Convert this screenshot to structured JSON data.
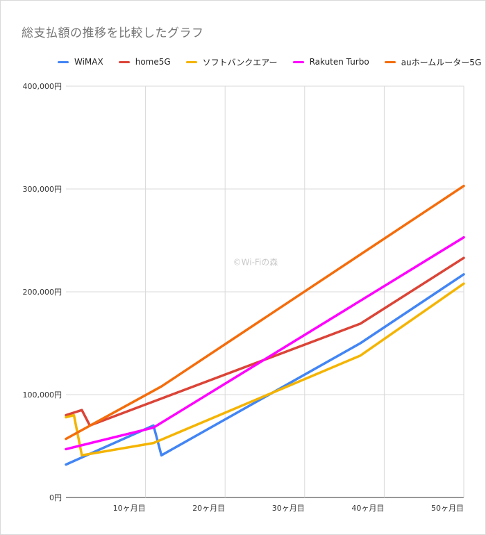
{
  "chart_data": {
    "type": "line",
    "title": "総支払額の推移を比較したグラフ",
    "xlabel": "",
    "ylabel": "",
    "xlim": [
      0,
      50
    ],
    "ylim": [
      0,
      400000
    ],
    "x_ticks": [
      10,
      20,
      30,
      40,
      50
    ],
    "x_tick_labels": [
      "10ヶ月目",
      "20ヶ月目",
      "30ヶ月目",
      "40ヶ月目",
      "50ヶ月目"
    ],
    "y_ticks": [
      0,
      100000,
      200000,
      300000,
      400000
    ],
    "y_tick_labels": [
      "0円",
      "100,000円",
      "200,000円",
      "300,000円",
      "400,000円"
    ],
    "grid": true,
    "legend_position": "top",
    "watermark": "©Wi-Fiの森",
    "series": [
      {
        "name": "WiMAX",
        "color": "#4285f4",
        "points": [
          [
            0,
            32000
          ],
          [
            11,
            70000
          ],
          [
            12,
            41000
          ],
          [
            37,
            150000
          ],
          [
            50,
            217000
          ]
        ]
      },
      {
        "name": "home5G",
        "color": "#db4437",
        "points": [
          [
            0,
            80000
          ],
          [
            2,
            85000
          ],
          [
            3,
            70000
          ],
          [
            37,
            169000
          ],
          [
            50,
            233000
          ]
        ]
      },
      {
        "name": "ソフトバンクエアー",
        "color": "#f4b400",
        "points": [
          [
            0,
            78000
          ],
          [
            1,
            80000
          ],
          [
            2,
            41000
          ],
          [
            11,
            53000
          ],
          [
            37,
            138000
          ],
          [
            50,
            208000
          ]
        ]
      },
      {
        "name": "Rakuten Turbo",
        "color": "#ff00ff",
        "points": [
          [
            0,
            47000
          ],
          [
            11,
            68000
          ],
          [
            50,
            253000
          ]
        ]
      },
      {
        "name": "auホームルーター5G",
        "color": "#f46d0c",
        "points": [
          [
            0,
            57000
          ],
          [
            12,
            108000
          ],
          [
            50,
            303000
          ]
        ]
      }
    ]
  }
}
